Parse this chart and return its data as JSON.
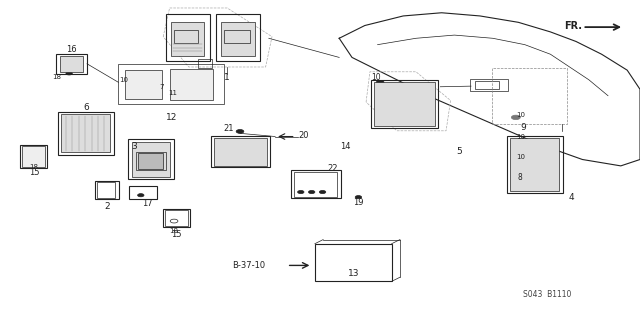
{
  "bg_color": "#ffffff",
  "fig_width": 6.4,
  "fig_height": 3.19,
  "dpi": 100,
  "diagram_code": "S043 B1110",
  "line_color": "#222222",
  "text_color": "#222222"
}
